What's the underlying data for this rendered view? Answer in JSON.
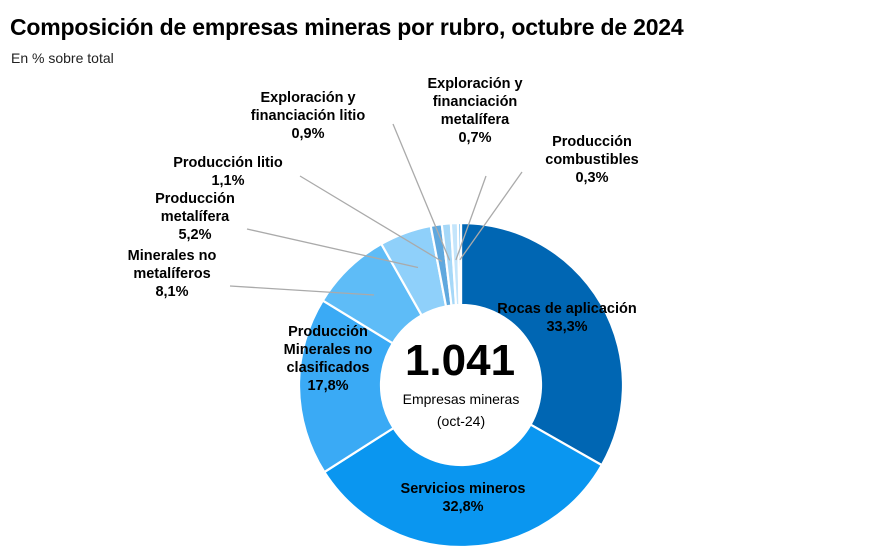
{
  "chart_data": {
    "type": "pie",
    "title": "Composición de empresas mineras por rubro, octubre de 2024",
    "subtitle": "En % sobre total",
    "center_value": "1.041",
    "center_label_1": "Empresas mineras",
    "center_label_2": "(oct-24)",
    "slices": [
      {
        "name": "Rocas de aplicación",
        "name_lines": [
          "Rocas de aplicación"
        ],
        "value": 33.3,
        "label": "33,3%",
        "color": "#0066b3",
        "text_color": "#000000"
      },
      {
        "name": "Servicios mineros",
        "name_lines": [
          "Servicios mineros"
        ],
        "value": 32.8,
        "label": "32,8%",
        "color": "#0a96f0",
        "text_color": "#000000"
      },
      {
        "name": "Producción Minerales no clasificados",
        "name_lines": [
          "Producción",
          "Minerales no",
          "clasificados"
        ],
        "value": 17.8,
        "label": "17,8%",
        "color": "#3aaaf5",
        "text_color": "#000000"
      },
      {
        "name": "Minerales no metalíferos",
        "name_lines": [
          "Minerales no",
          "metalíferos"
        ],
        "value": 8.1,
        "label": "8,1%",
        "color": "#5ebcf7",
        "text_color": "#000000"
      },
      {
        "name": "Producción metalífera",
        "name_lines": [
          "Producción",
          "metalífera"
        ],
        "value": 5.2,
        "label": "5,2%",
        "color": "#8fd0fa",
        "text_color": "#000000"
      },
      {
        "name": "Producción litio",
        "name_lines": [
          "Producción litio"
        ],
        "value": 1.1,
        "label": "1,1%",
        "color": "#5fa8de",
        "text_color": "#000000"
      },
      {
        "name": "Exploración y financiación litio",
        "name_lines": [
          "Exploración y",
          "financiación litio"
        ],
        "value": 0.9,
        "label": "0,9%",
        "color": "#a6d8f8",
        "text_color": "#000000"
      },
      {
        "name": "Exploración y financiación metalífera",
        "name_lines": [
          "Exploración y",
          "financiación",
          "metalífera"
        ],
        "value": 0.7,
        "label": "0,7%",
        "color": "#c4e5fb",
        "text_color": "#000000"
      },
      {
        "name": "Producción combustibles",
        "name_lines": [
          "Producción",
          "combustibles"
        ],
        "value": 0.3,
        "label": "0,3%",
        "color": "#7fc3f2",
        "text_color": "#000000"
      }
    ],
    "colors": {
      "leader_line": "#aaaaaa",
      "separator": "#ffffff"
    }
  }
}
